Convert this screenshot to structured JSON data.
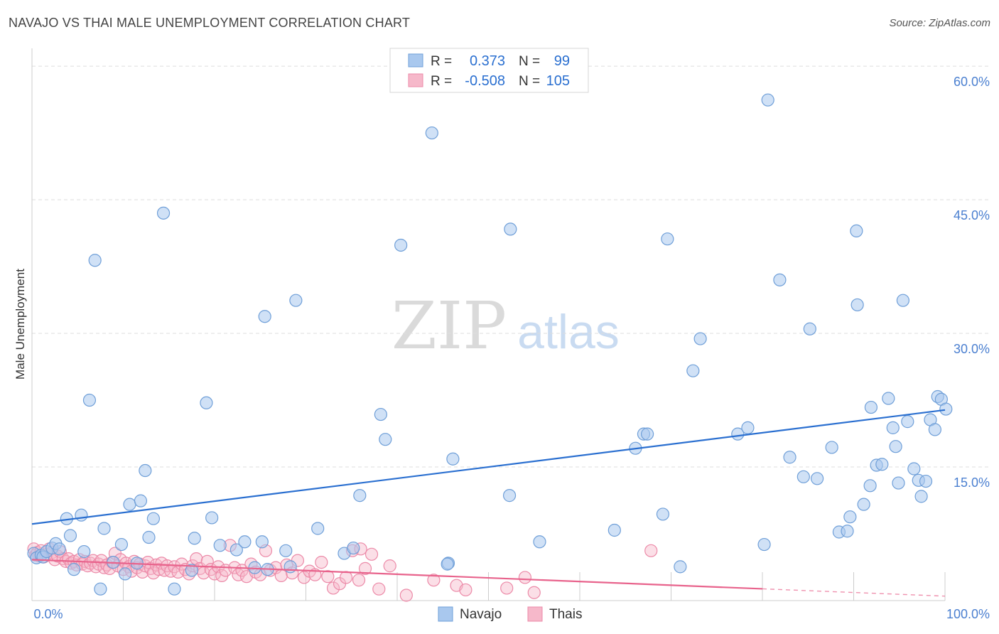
{
  "title": "NAVAJO VS THAI MALE UNEMPLOYMENT CORRELATION CHART",
  "source": "Source: ZipAtlas.com",
  "watermark": {
    "zip": "ZIP",
    "atlas": "atlas"
  },
  "colors": {
    "navajo_fill": "#a9c8ee",
    "navajo_stroke": "#6f9fd8",
    "navajo_line": "#2a6fd0",
    "thai_fill": "#f6b8ca",
    "thai_stroke": "#ec8aa8",
    "thai_line": "#e8638c",
    "axis_text": "#4a7fd0",
    "grid": "#dddddd"
  },
  "chart_data": {
    "type": "scatter",
    "title": "NAVAJO VS THAI MALE UNEMPLOYMENT CORRELATION CHART",
    "xlabel": "",
    "ylabel": "Male Unemployment",
    "xlim": [
      0,
      100
    ],
    "ylim": [
      0,
      62
    ],
    "x_tick_labels": [
      "0.0%",
      "100.0%"
    ],
    "y_ticks": [
      15,
      30,
      45,
      60
    ],
    "y_tick_labels": [
      "15.0%",
      "30.0%",
      "45.0%",
      "60.0%"
    ],
    "legend": {
      "placement": "top-center",
      "rows": [
        {
          "r_label": "R =",
          "r_value": "0.373",
          "n_label": "N =",
          "n_value": "99"
        },
        {
          "r_label": "R =",
          "r_value": "-0.508",
          "n_label": "N =",
          "n_value": "105"
        }
      ]
    },
    "bottom_legend": [
      "Navajo",
      "Thais"
    ],
    "series": [
      {
        "name": "Navajo",
        "r": 0.373,
        "n": 99,
        "trend": {
          "x": [
            0,
            100
          ],
          "y": [
            8.6,
            21.4
          ],
          "dashed_from": null
        },
        "points": [
          [
            0.2,
            5.3
          ],
          [
            0.5,
            4.8
          ],
          [
            1.0,
            5.1
          ],
          [
            1.2,
            4.9
          ],
          [
            1.6,
            5.5
          ],
          [
            2.2,
            5.9
          ],
          [
            2.6,
            6.4
          ],
          [
            3.0,
            5.8
          ],
          [
            3.8,
            9.2
          ],
          [
            4.2,
            7.3
          ],
          [
            4.6,
            3.5
          ],
          [
            5.4,
            9.6
          ],
          [
            5.7,
            5.5
          ],
          [
            6.9,
            38.2
          ],
          [
            7.5,
            1.3
          ],
          [
            7.9,
            8.1
          ],
          [
            6.3,
            22.5
          ],
          [
            8.9,
            4.3
          ],
          [
            9.8,
            6.3
          ],
          [
            10.2,
            3.0
          ],
          [
            10.7,
            10.8
          ],
          [
            11.5,
            4.2
          ],
          [
            11.9,
            11.2
          ],
          [
            12.4,
            14.6
          ],
          [
            12.8,
            7.1
          ],
          [
            13.3,
            9.2
          ],
          [
            14.4,
            43.5
          ],
          [
            15.6,
            1.3
          ],
          [
            17.5,
            3.4
          ],
          [
            17.8,
            7.0
          ],
          [
            19.1,
            22.2
          ],
          [
            19.7,
            9.3
          ],
          [
            20.6,
            6.2
          ],
          [
            22.4,
            5.7
          ],
          [
            23.3,
            6.6
          ],
          [
            24.4,
            3.7
          ],
          [
            25.2,
            6.6
          ],
          [
            25.5,
            31.9
          ],
          [
            25.8,
            3.5
          ],
          [
            27.8,
            5.6
          ],
          [
            28.3,
            3.8
          ],
          [
            28.9,
            33.7
          ],
          [
            31.3,
            8.1
          ],
          [
            34.2,
            5.3
          ],
          [
            35.2,
            5.9
          ],
          [
            35.9,
            11.8
          ],
          [
            38.2,
            20.9
          ],
          [
            38.7,
            18.1
          ],
          [
            40.4,
            39.9
          ],
          [
            43.8,
            52.5
          ],
          [
            45.6,
            4.2
          ],
          [
            46.1,
            15.9
          ],
          [
            45.5,
            4.1
          ],
          [
            52.3,
            11.8
          ],
          [
            52.4,
            41.7
          ],
          [
            55.6,
            6.6
          ],
          [
            63.8,
            7.9
          ],
          [
            66.1,
            17.1
          ],
          [
            67.0,
            18.7
          ],
          [
            67.4,
            18.7
          ],
          [
            69.1,
            9.7
          ],
          [
            69.6,
            40.6
          ],
          [
            71.0,
            3.8
          ],
          [
            72.4,
            25.8
          ],
          [
            73.2,
            29.4
          ],
          [
            77.3,
            18.7
          ],
          [
            78.4,
            19.4
          ],
          [
            80.2,
            6.3
          ],
          [
            80.6,
            56.2
          ],
          [
            81.9,
            36.0
          ],
          [
            83.0,
            16.1
          ],
          [
            84.5,
            13.9
          ],
          [
            85.2,
            30.5
          ],
          [
            86.0,
            13.7
          ],
          [
            87.6,
            17.2
          ],
          [
            88.4,
            7.7
          ],
          [
            89.3,
            7.8
          ],
          [
            89.6,
            9.4
          ],
          [
            90.4,
            33.2
          ],
          [
            90.3,
            41.5
          ],
          [
            91.1,
            10.8
          ],
          [
            91.8,
            12.9
          ],
          [
            91.9,
            21.7
          ],
          [
            92.5,
            15.2
          ],
          [
            93.1,
            15.3
          ],
          [
            93.8,
            22.7
          ],
          [
            94.3,
            19.4
          ],
          [
            94.6,
            17.3
          ],
          [
            94.9,
            13.2
          ],
          [
            95.4,
            33.7
          ],
          [
            95.9,
            20.1
          ],
          [
            96.6,
            14.8
          ],
          [
            97.1,
            13.5
          ],
          [
            97.4,
            11.7
          ],
          [
            97.9,
            13.4
          ],
          [
            98.4,
            20.3
          ],
          [
            98.9,
            19.2
          ],
          [
            99.2,
            22.9
          ],
          [
            99.6,
            22.6
          ],
          [
            100.1,
            21.5
          ]
        ]
      },
      {
        "name": "Thais",
        "r": -0.508,
        "n": 105,
        "trend": {
          "x": [
            0,
            100
          ],
          "y": [
            4.6,
            0.5
          ],
          "dashed_from": 80
        },
        "points": [
          [
            0.2,
            5.8
          ],
          [
            0.4,
            5.1
          ],
          [
            0.6,
            5.4
          ],
          [
            0.8,
            5.0
          ],
          [
            1.0,
            5.6
          ],
          [
            1.3,
            4.9
          ],
          [
            1.6,
            5.2
          ],
          [
            1.9,
            5.8
          ],
          [
            2.2,
            5.4
          ],
          [
            2.5,
            4.6
          ],
          [
            2.8,
            5.0
          ],
          [
            3.1,
            5.5
          ],
          [
            3.4,
            4.7
          ],
          [
            3.7,
            4.4
          ],
          [
            4.0,
            4.7
          ],
          [
            4.3,
            4.2
          ],
          [
            4.6,
            4.4
          ],
          [
            4.9,
            4.0
          ],
          [
            5.2,
            4.6
          ],
          [
            5.5,
            4.1
          ],
          [
            5.8,
            4.4
          ],
          [
            6.1,
            3.9
          ],
          [
            6.4,
            4.2
          ],
          [
            6.7,
            4.5
          ],
          [
            7.0,
            3.8
          ],
          [
            7.3,
            4.1
          ],
          [
            7.6,
            4.5
          ],
          [
            7.9,
            3.7
          ],
          [
            8.2,
            4.0
          ],
          [
            8.5,
            3.6
          ],
          [
            8.8,
            4.3
          ],
          [
            9.1,
            5.3
          ],
          [
            9.4,
            3.9
          ],
          [
            9.7,
            4.6
          ],
          [
            10.0,
            3.5
          ],
          [
            10.3,
            4.2
          ],
          [
            10.6,
            3.8
          ],
          [
            10.9,
            3.3
          ],
          [
            11.2,
            4.4
          ],
          [
            11.5,
            3.7
          ],
          [
            11.8,
            4.1
          ],
          [
            12.1,
            3.2
          ],
          [
            12.4,
            3.9
          ],
          [
            12.7,
            4.3
          ],
          [
            13.0,
            3.6
          ],
          [
            13.3,
            3.1
          ],
          [
            13.6,
            4.0
          ],
          [
            13.9,
            3.5
          ],
          [
            14.2,
            4.2
          ],
          [
            14.5,
            3.4
          ],
          [
            14.8,
            3.9
          ],
          [
            15.2,
            3.3
          ],
          [
            15.6,
            3.8
          ],
          [
            16.0,
            3.2
          ],
          [
            16.4,
            4.1
          ],
          [
            16.8,
            3.5
          ],
          [
            17.2,
            3.0
          ],
          [
            17.6,
            3.9
          ],
          [
            18.0,
            4.7
          ],
          [
            18.4,
            3.6
          ],
          [
            18.8,
            3.1
          ],
          [
            19.2,
            4.4
          ],
          [
            19.6,
            3.5
          ],
          [
            20.0,
            3.0
          ],
          [
            20.4,
            3.8
          ],
          [
            20.8,
            2.8
          ],
          [
            21.2,
            3.4
          ],
          [
            21.7,
            6.2
          ],
          [
            22.2,
            3.7
          ],
          [
            22.6,
            2.9
          ],
          [
            23.0,
            3.4
          ],
          [
            23.5,
            2.7
          ],
          [
            24.0,
            4.1
          ],
          [
            24.5,
            3.2
          ],
          [
            25.0,
            2.9
          ],
          [
            25.6,
            5.6
          ],
          [
            26.1,
            3.4
          ],
          [
            26.7,
            3.7
          ],
          [
            27.3,
            2.8
          ],
          [
            27.9,
            4.0
          ],
          [
            28.5,
            3.1
          ],
          [
            29.1,
            4.5
          ],
          [
            29.8,
            2.6
          ],
          [
            30.4,
            3.3
          ],
          [
            31.0,
            2.9
          ],
          [
            31.7,
            4.3
          ],
          [
            32.4,
            2.7
          ],
          [
            33.0,
            1.4
          ],
          [
            33.7,
            1.9
          ],
          [
            34.4,
            2.6
          ],
          [
            35.1,
            5.6
          ],
          [
            35.8,
            2.3
          ],
          [
            36.5,
            3.6
          ],
          [
            37.2,
            5.2
          ],
          [
            38.0,
            1.3
          ],
          [
            39.2,
            3.9
          ],
          [
            41.0,
            0.6
          ],
          [
            44.0,
            2.3
          ],
          [
            46.5,
            1.7
          ],
          [
            47.5,
            1.2
          ],
          [
            52.0,
            1.4
          ],
          [
            54.0,
            2.6
          ],
          [
            55.0,
            0.9
          ],
          [
            67.8,
            5.6
          ],
          [
            36.0,
            5.8
          ]
        ]
      }
    ]
  }
}
